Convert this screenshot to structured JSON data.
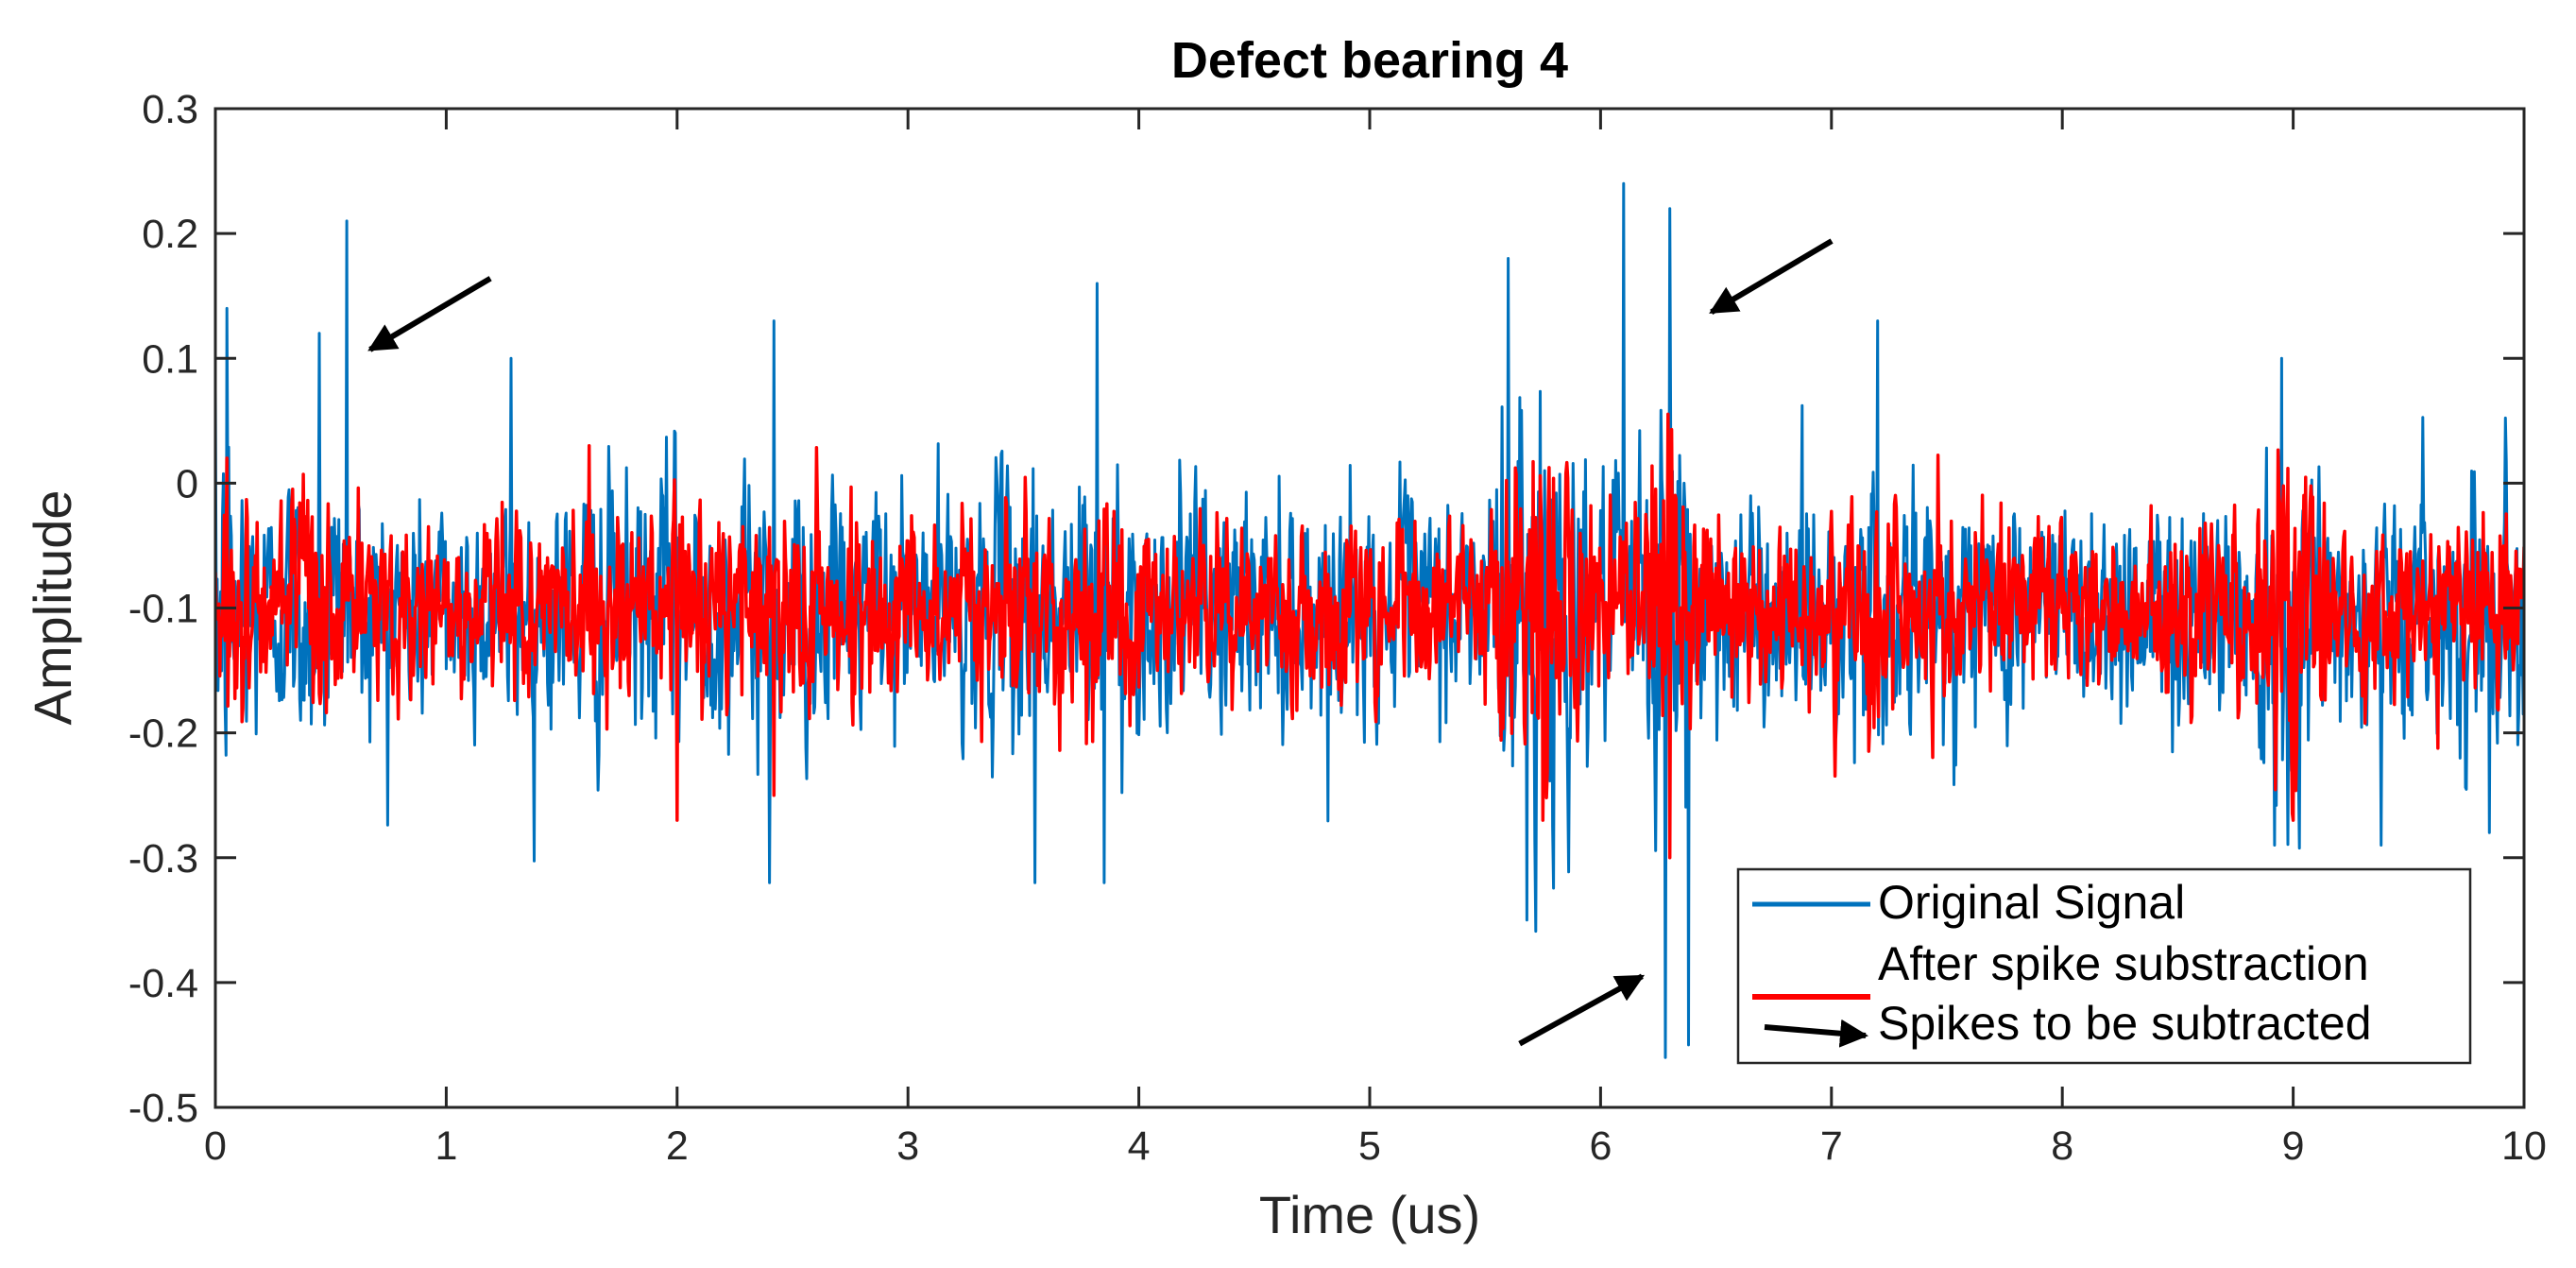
{
  "chart_data": {
    "type": "line",
    "title": "Defect bearing 4",
    "xlabel": "Time (us)",
    "ylabel": "Amplitude",
    "xlim": [
      0,
      10
    ],
    "ylim": [
      -0.5,
      0.3
    ],
    "xticks": [
      0,
      1,
      2,
      3,
      4,
      5,
      6,
      7,
      8,
      9,
      10
    ],
    "xtick_labels": [
      "0",
      "1",
      "2",
      "3",
      "4",
      "5",
      "6",
      "7",
      "8",
      "9",
      "10"
    ],
    "yticks": [
      0.3,
      0.2,
      0.1,
      0,
      -0.1,
      -0.2,
      -0.3,
      -0.4,
      -0.5
    ],
    "ytick_labels": [
      "0.3",
      "0.2",
      "0.1",
      "0",
      "-0.1",
      "-0.2",
      "-0.3",
      "-0.4",
      "-0.5"
    ],
    "grid": false,
    "legend_position": "bottom-right",
    "series": [
      {
        "name": "Original Signal",
        "color": "#0072BD",
        "baseline": -0.1,
        "spread": 0.06,
        "notable_points": [
          {
            "x": 0.05,
            "y": 0.14
          },
          {
            "x": 0.45,
            "y": 0.12
          },
          {
            "x": 0.57,
            "y": 0.21
          },
          {
            "x": 1.28,
            "y": 0.1
          },
          {
            "x": 2.4,
            "y": -0.32
          },
          {
            "x": 2.42,
            "y": 0.13
          },
          {
            "x": 3.55,
            "y": -0.32
          },
          {
            "x": 3.82,
            "y": 0.16
          },
          {
            "x": 3.85,
            "y": -0.32
          },
          {
            "x": 5.6,
            "y": 0.18
          },
          {
            "x": 5.68,
            "y": -0.35
          },
          {
            "x": 6.1,
            "y": 0.24
          },
          {
            "x": 6.28,
            "y": -0.46
          },
          {
            "x": 6.3,
            "y": 0.22
          },
          {
            "x": 6.38,
            "y": -0.45
          },
          {
            "x": 7.2,
            "y": 0.13
          },
          {
            "x": 8.95,
            "y": 0.1
          },
          {
            "x": 8.92,
            "y": -0.29
          },
          {
            "x": 9.38,
            "y": -0.29
          },
          {
            "x": 9.85,
            "y": -0.28
          }
        ]
      },
      {
        "name": "After spike substraction",
        "color": "#FF0000",
        "baseline": -0.1,
        "spread": 0.045,
        "notable_points": [
          {
            "x": 0.05,
            "y": 0.02
          },
          {
            "x": 1.62,
            "y": 0.03
          },
          {
            "x": 2.0,
            "y": -0.27
          },
          {
            "x": 2.42,
            "y": -0.25
          },
          {
            "x": 5.75,
            "y": -0.27
          },
          {
            "x": 6.3,
            "y": -0.3
          },
          {
            "x": 9.0,
            "y": 0.03
          },
          {
            "x": 9.0,
            "y": -0.27
          }
        ]
      },
      {
        "name": "Spikes to be subtracted",
        "color": "#000000",
        "marker": "arrow",
        "points": [
          {
            "x": 0.67,
            "y": 0.107,
            "dir": "down-left"
          },
          {
            "x": 6.48,
            "y": 0.137,
            "dir": "down-left"
          },
          {
            "x": 6.18,
            "y": -0.395,
            "dir": "up-right"
          }
        ]
      }
    ]
  }
}
